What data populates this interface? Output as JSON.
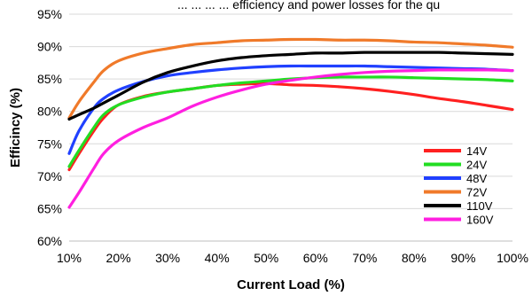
{
  "caption_fragment": "... ... ... ... efficiency and power losses for the qu",
  "chart_data": {
    "type": "line",
    "title": "",
    "xlabel": "Current Load (%)",
    "ylabel": "Efficincy (%)",
    "xlim": [
      10,
      100
    ],
    "ylim": [
      60,
      95
    ],
    "x_ticks": [
      "10%",
      "20%",
      "30%",
      "40%",
      "50%",
      "60%",
      "70%",
      "80%",
      "90%",
      "100%"
    ],
    "y_ticks": [
      "60%",
      "65%",
      "70%",
      "75%",
      "80%",
      "85%",
      "90%",
      "95%"
    ],
    "grid": "horizontal",
    "legend_position": "bottom-right",
    "series": [
      {
        "name": "14V",
        "color": "#ff2020",
        "x": [
          10,
          12,
          15,
          17,
          20,
          25,
          30,
          35,
          40,
          45,
          50,
          55,
          60,
          65,
          70,
          75,
          80,
          85,
          90,
          95,
          100
        ],
        "y": [
          71,
          73.5,
          77,
          79,
          81,
          82.3,
          83,
          83.5,
          84,
          84.2,
          84.3,
          84.1,
          84,
          83.8,
          83.5,
          83.1,
          82.6,
          82,
          81.5,
          80.9,
          80.3
        ]
      },
      {
        "name": "24V",
        "color": "#22dd22",
        "x": [
          10,
          12,
          15,
          17,
          20,
          25,
          30,
          35,
          40,
          45,
          50,
          55,
          60,
          65,
          70,
          75,
          80,
          85,
          90,
          95,
          100
        ],
        "y": [
          71.5,
          74,
          77.5,
          79.5,
          81,
          82.2,
          83,
          83.5,
          84,
          84.4,
          84.7,
          85,
          85.2,
          85.3,
          85.3,
          85.3,
          85.2,
          85.1,
          85,
          84.9,
          84.7
        ]
      },
      {
        "name": "48V",
        "color": "#2040ff",
        "x": [
          10,
          12,
          15,
          17,
          20,
          25,
          30,
          35,
          40,
          45,
          50,
          55,
          60,
          65,
          70,
          75,
          80,
          85,
          90,
          95,
          100
        ],
        "y": [
          73.5,
          77,
          80.5,
          82,
          83.3,
          84.6,
          85.5,
          86,
          86.4,
          86.7,
          86.9,
          87,
          87,
          87,
          87,
          86.9,
          86.8,
          86.7,
          86.6,
          86.5,
          86.3
        ]
      },
      {
        "name": "72V",
        "color": "#f07a2a",
        "x": [
          10,
          12,
          15,
          17,
          20,
          25,
          30,
          35,
          40,
          45,
          50,
          55,
          60,
          65,
          70,
          75,
          80,
          85,
          90,
          95,
          100
        ],
        "y": [
          79,
          81.5,
          84.5,
          86.3,
          87.8,
          89,
          89.7,
          90.3,
          90.6,
          90.9,
          91,
          91.1,
          91.1,
          91,
          91,
          90.9,
          90.7,
          90.6,
          90.4,
          90.2,
          89.9
        ]
      },
      {
        "name": "110V",
        "color": "#000000",
        "x": [
          10,
          12,
          15,
          17,
          20,
          25,
          30,
          35,
          40,
          45,
          50,
          55,
          60,
          65,
          70,
          75,
          80,
          85,
          90,
          95,
          100
        ],
        "y": [
          78.8,
          79.5,
          80.5,
          81.3,
          82.5,
          84.5,
          86,
          87,
          87.8,
          88.3,
          88.6,
          88.8,
          89,
          89,
          89.1,
          89.1,
          89.1,
          89.1,
          89,
          88.9,
          88.8
        ]
      },
      {
        "name": "160V",
        "color": "#ff1fe0",
        "x": [
          10,
          12,
          15,
          17,
          20,
          25,
          30,
          35,
          40,
          45,
          50,
          55,
          60,
          65,
          70,
          75,
          80,
          85,
          90,
          95,
          100
        ],
        "y": [
          65.2,
          67.5,
          71.2,
          73.5,
          75.5,
          77.5,
          79,
          80.8,
          82.2,
          83.3,
          84.2,
          84.8,
          85.3,
          85.7,
          86,
          86.2,
          86.3,
          86.4,
          86.4,
          86.4,
          86.3
        ]
      }
    ]
  }
}
